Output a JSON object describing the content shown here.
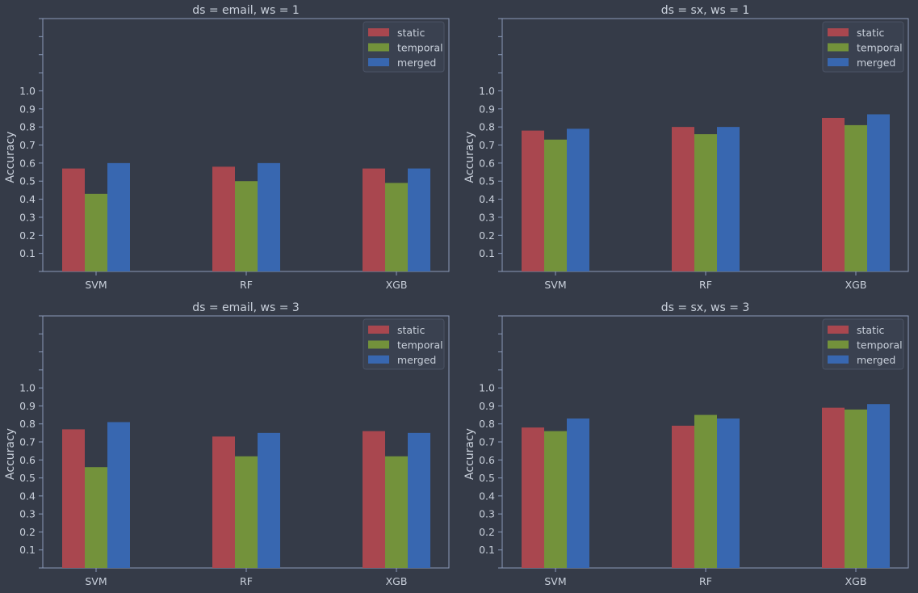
{
  "chart_data": [
    {
      "type": "bar",
      "title": "ds = email, ws = 1",
      "ylabel": "Accuracy",
      "categories": [
        "SVM",
        "RF",
        "XGB"
      ],
      "yticks": [
        "0.1",
        "0.2",
        "0.3",
        "0.4",
        "0.5",
        "0.6",
        "0.7",
        "0.8",
        "0.9",
        "1.0"
      ],
      "ylim": [
        0,
        1.4
      ],
      "legend_position": "top-right",
      "series": [
        {
          "name": "static",
          "values": [
            0.57,
            0.58,
            0.57
          ]
        },
        {
          "name": "temporal",
          "values": [
            0.43,
            0.5,
            0.49
          ]
        },
        {
          "name": "merged",
          "values": [
            0.6,
            0.6,
            0.57
          ]
        }
      ]
    },
    {
      "type": "bar",
      "title": "ds = sx, ws = 1",
      "ylabel": "Accuracy",
      "categories": [
        "SVM",
        "RF",
        "XGB"
      ],
      "yticks": [
        "0.1",
        "0.2",
        "0.3",
        "0.4",
        "0.5",
        "0.6",
        "0.7",
        "0.8",
        "0.9",
        "1.0"
      ],
      "ylim": [
        0,
        1.4
      ],
      "legend_position": "top-right",
      "series": [
        {
          "name": "static",
          "values": [
            0.78,
            0.8,
            0.85
          ]
        },
        {
          "name": "temporal",
          "values": [
            0.73,
            0.76,
            0.81
          ]
        },
        {
          "name": "merged",
          "values": [
            0.79,
            0.8,
            0.87
          ]
        }
      ]
    },
    {
      "type": "bar",
      "title": "ds = email, ws = 3",
      "ylabel": "Accuracy",
      "categories": [
        "SVM",
        "RF",
        "XGB"
      ],
      "yticks": [
        "0.1",
        "0.2",
        "0.3",
        "0.4",
        "0.5",
        "0.6",
        "0.7",
        "0.8",
        "0.9",
        "1.0"
      ],
      "ylim": [
        0,
        1.4
      ],
      "legend_position": "top-right",
      "series": [
        {
          "name": "static",
          "values": [
            0.77,
            0.73,
            0.76
          ]
        },
        {
          "name": "temporal",
          "values": [
            0.56,
            0.62,
            0.62
          ]
        },
        {
          "name": "merged",
          "values": [
            0.81,
            0.75,
            0.75
          ]
        }
      ]
    },
    {
      "type": "bar",
      "title": "ds = sx, ws = 3",
      "ylabel": "Accuracy",
      "categories": [
        "SVM",
        "RF",
        "XGB"
      ],
      "yticks": [
        "0.1",
        "0.2",
        "0.3",
        "0.4",
        "0.5",
        "0.6",
        "0.7",
        "0.8",
        "0.9",
        "1.0"
      ],
      "ylim": [
        0,
        1.4
      ],
      "legend_position": "top-right",
      "series": [
        {
          "name": "static",
          "values": [
            0.78,
            0.79,
            0.89
          ]
        },
        {
          "name": "temporal",
          "values": [
            0.76,
            0.85,
            0.88
          ]
        },
        {
          "name": "merged",
          "values": [
            0.83,
            0.83,
            0.91
          ]
        }
      ]
    }
  ],
  "colors": {
    "background": "#353b48",
    "axis": "#8a9ab8",
    "text": "#c9d0db",
    "static": "#a9474f",
    "temporal": "#73923b",
    "merged": "#3867b0"
  }
}
